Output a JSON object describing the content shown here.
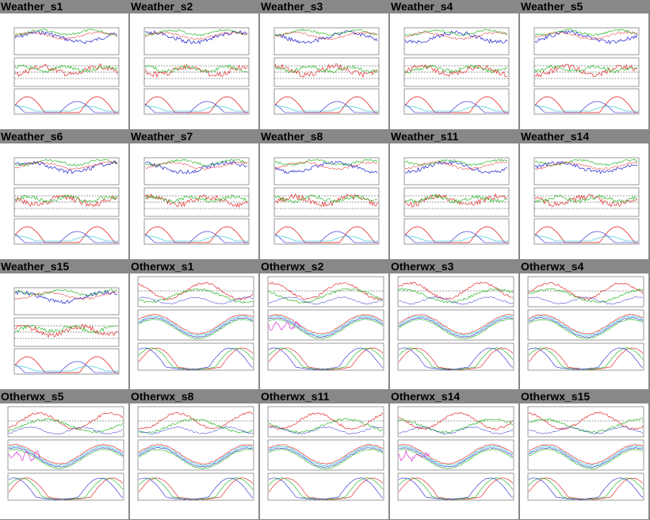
{
  "page": {
    "background": "#888888"
  },
  "thumbnails": [
    {
      "title": "Weather_s1",
      "style": "weather"
    },
    {
      "title": "Weather_s2",
      "style": "weather"
    },
    {
      "title": "Weather_s3",
      "style": "weather"
    },
    {
      "title": "Weather_s4",
      "style": "weather"
    },
    {
      "title": "Weather_s5",
      "style": "weather"
    },
    {
      "title": "Weather_s6",
      "style": "weather"
    },
    {
      "title": "Weather_s7",
      "style": "weather"
    },
    {
      "title": "Weather_s8",
      "style": "weather"
    },
    {
      "title": "Weather_s11",
      "style": "weather"
    },
    {
      "title": "Weather_s14",
      "style": "weather"
    },
    {
      "title": "Weather_s15",
      "style": "weather"
    },
    {
      "title": "Otherwx_s1",
      "style": "otherwx"
    },
    {
      "title": "Otherwx_s2",
      "style": "otherwx"
    },
    {
      "title": "Otherwx_s3",
      "style": "otherwx"
    },
    {
      "title": "Otherwx_s4",
      "style": "otherwx"
    },
    {
      "title": "Otherwx_s5",
      "style": "otherwx"
    },
    {
      "title": "Otherwx_s8",
      "style": "otherwx"
    },
    {
      "title": "Otherwx_s11",
      "style": "otherwx"
    },
    {
      "title": "Otherwx_s14",
      "style": "otherwx"
    },
    {
      "title": "Otherwx_s15",
      "style": "otherwx"
    }
  ],
  "colors": {
    "red": "#e01010",
    "green": "#10b010",
    "blue": "#2020d0",
    "cyan": "#10c0d0",
    "magenta": "#d010d0"
  }
}
